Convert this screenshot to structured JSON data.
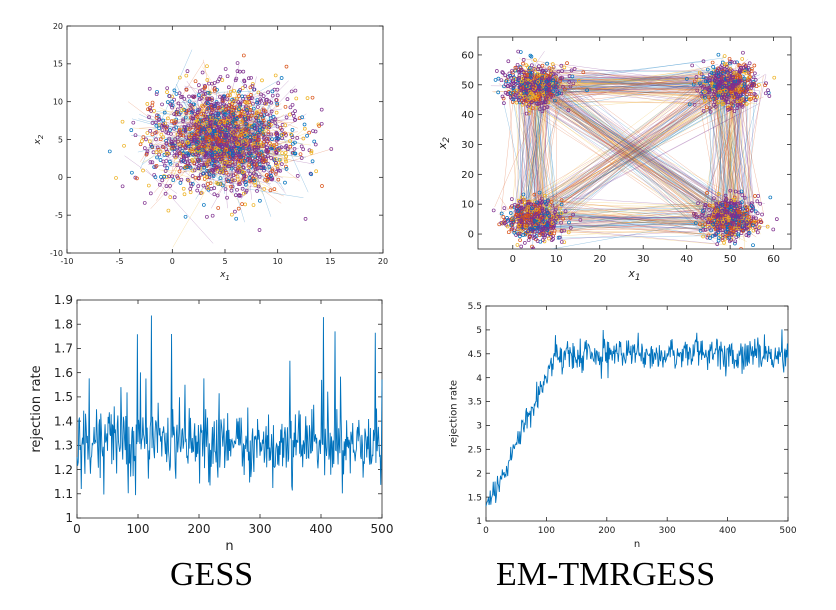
{
  "captions": {
    "left": "GESS",
    "right": "EM-TMRGESS"
  },
  "colors": {
    "series": [
      "#0072BD",
      "#D95319",
      "#EDB120",
      "#7E2F8E"
    ],
    "trace": "#0072BD",
    "axis": "#262626"
  },
  "chart_data": [
    {
      "id": "scatter-gess",
      "type": "scatter",
      "title": "",
      "xlabel": "x1",
      "ylabel": "x2",
      "xlim": [
        -10,
        20
      ],
      "ylim": [
        -10,
        20
      ],
      "xticks": [
        -10,
        -5,
        0,
        5,
        10,
        15,
        20
      ],
      "yticks": [
        -10,
        -5,
        0,
        5,
        10,
        15,
        20
      ],
      "cluster_centers": [
        [
          5,
          5
        ]
      ],
      "cluster_spread": [
        3.2,
        3.4
      ],
      "series_colors": [
        "#0072BD",
        "#D95319",
        "#EDB120",
        "#7E2F8E"
      ]
    },
    {
      "id": "scatter-emtmrgess",
      "type": "scatter",
      "title": "",
      "xlabel": "x1",
      "ylabel": "x2",
      "xlim": [
        -8,
        64
      ],
      "ylim": [
        -5,
        66
      ],
      "xticks": [
        0,
        10,
        20,
        30,
        40,
        50,
        60
      ],
      "yticks": [
        0,
        10,
        20,
        30,
        40,
        50,
        60
      ],
      "cluster_centers": [
        [
          5,
          5
        ],
        [
          5,
          50
        ],
        [
          50,
          5
        ],
        [
          50,
          50
        ]
      ],
      "cluster_spread": [
        3.2,
        3.4
      ],
      "series_colors": [
        "#0072BD",
        "#D95319",
        "#EDB120",
        "#7E2F8E"
      ]
    },
    {
      "id": "line-gess",
      "type": "line",
      "title": "",
      "xlabel": "n",
      "ylabel": "rejection rate",
      "xlim": [
        0,
        500
      ],
      "ylim": [
        1,
        1.9
      ],
      "xticks": [
        0,
        100,
        200,
        300,
        400,
        500
      ],
      "yticks": [
        1,
        1.1,
        1.2,
        1.3,
        1.4,
        1.5,
        1.6,
        1.7,
        1.8,
        1.9
      ],
      "n_points": 500,
      "baseline": 1.3,
      "noise": 0.07,
      "spike_max": 1.84,
      "min_value": 1.08
    },
    {
      "id": "line-emtmrgess",
      "type": "line",
      "title": "",
      "xlabel": "n",
      "ylabel": "rejection rate",
      "xlim": [
        0,
        500
      ],
      "ylim": [
        1,
        5.5
      ],
      "xticks": [
        0,
        100,
        200,
        300,
        400,
        500
      ],
      "yticks": [
        1,
        1.5,
        2,
        2.5,
        3,
        3.5,
        4,
        4.5,
        5,
        5.5
      ],
      "n_points": 500,
      "start_value": 1.3,
      "plateau_start": 115,
      "plateau_value": 4.5,
      "noise": 0.17,
      "max_value": 5.35
    }
  ]
}
